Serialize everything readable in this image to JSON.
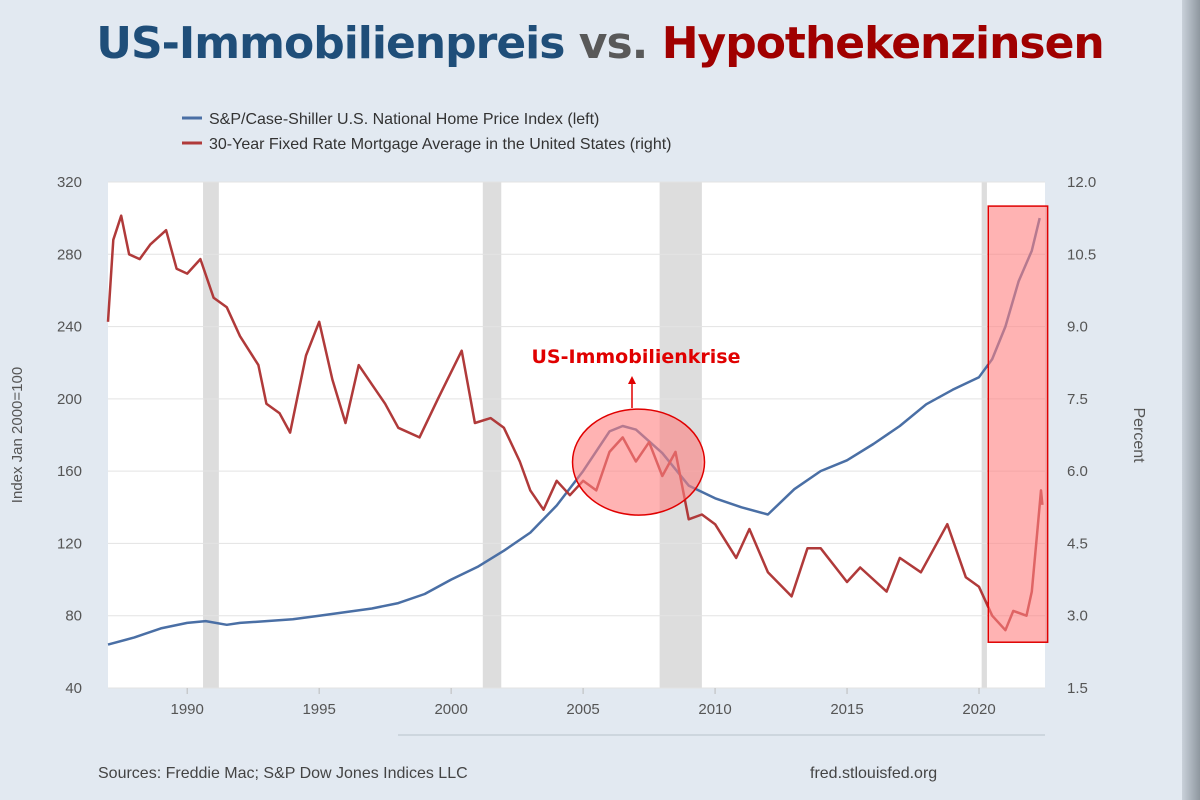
{
  "title": {
    "part1": "US-Immobilienpreis",
    "part2": "vs.",
    "part3": "Hypothekenzinsen"
  },
  "colors": {
    "hpi": "#4a6fa5",
    "mortgage": "#b03a3a",
    "title_blue": "#1f4e79",
    "title_red": "#a00000",
    "highlight": "#ff8080",
    "recession": "#dddddd"
  },
  "chart_data": {
    "type": "line",
    "xlim": [
      1987,
      2022.5
    ],
    "x_ticks": [
      "1990",
      "1995",
      "2000",
      "2005",
      "2010",
      "2015",
      "2020"
    ],
    "y_left": {
      "label": "Index Jan 2000=100",
      "range": [
        40,
        320
      ],
      "ticks": [
        "40",
        "80",
        "120",
        "160",
        "200",
        "240",
        "280",
        "320"
      ]
    },
    "y_right": {
      "label": "Percent",
      "range": [
        1.5,
        12.0
      ],
      "ticks": [
        "1.5",
        "3.0",
        "4.5",
        "6.0",
        "7.5",
        "9.0",
        "10.5",
        "12.0"
      ]
    },
    "grid": true,
    "legend_position": "top-left",
    "recessions": [
      [
        1990.6,
        1991.2
      ],
      [
        2001.2,
        2001.9
      ],
      [
        2007.9,
        2009.5
      ],
      [
        2020.1,
        2020.3
      ]
    ],
    "series": [
      {
        "name": "S&P/Case-Shiller U.S. National Home Price Index (left)",
        "axis": "left",
        "x": [
          1987,
          1988,
          1989,
          1990,
          1990.7,
          1991.5,
          1992,
          1993,
          1994,
          1995,
          1996,
          1997,
          1998,
          1999,
          2000,
          2001,
          2002,
          2003,
          2004,
          2005,
          2006,
          2006.5,
          2007,
          2008,
          2009,
          2010,
          2011,
          2012,
          2013,
          2014,
          2015,
          2016,
          2017,
          2018,
          2019,
          2020,
          2020.5,
          2021,
          2021.5,
          2022,
          2022.3
        ],
        "y": [
          64,
          68,
          73,
          76,
          77,
          75,
          76,
          77,
          78,
          80,
          82,
          84,
          87,
          92,
          100,
          107,
          116,
          126,
          141,
          160,
          182,
          185,
          183,
          170,
          152,
          145,
          140,
          136,
          150,
          160,
          166,
          175,
          185,
          197,
          205,
          212,
          222,
          240,
          265,
          282,
          300
        ]
      },
      {
        "name": "30-Year Fixed Rate Mortgage Average in the United States (right)",
        "axis": "right",
        "x": [
          1987,
          1987.2,
          1987.5,
          1987.8,
          1988.2,
          1988.6,
          1989.2,
          1989.6,
          1990,
          1990.5,
          1991,
          1991.5,
          1992,
          1992.7,
          1993,
          1993.5,
          1993.9,
          1994.5,
          1995,
          1995.5,
          1996,
          1996.5,
          1997,
          1997.5,
          1998,
          1998.8,
          1999.5,
          2000.4,
          2000.9,
          2001.5,
          2002,
          2002.6,
          2003,
          2003.5,
          2004,
          2004.5,
          2005,
          2005.5,
          2006,
          2006.5,
          2007,
          2007.5,
          2008,
          2008.5,
          2009,
          2009.5,
          2010,
          2010.8,
          2011.3,
          2012,
          2012.9,
          2013.5,
          2014,
          2015,
          2015.5,
          2016.5,
          2017,
          2017.8,
          2018.8,
          2019.5,
          2020,
          2020.5,
          2021,
          2021.3,
          2021.8,
          2022,
          2022.2,
          2022.35,
          2022.4
        ],
        "y": [
          9.1,
          10.8,
          11.3,
          10.5,
          10.4,
          10.7,
          11.0,
          10.2,
          10.1,
          10.4,
          9.6,
          9.4,
          8.8,
          8.2,
          7.4,
          7.2,
          6.8,
          8.4,
          9.1,
          7.9,
          7.0,
          8.2,
          7.8,
          7.4,
          6.9,
          6.7,
          7.5,
          8.5,
          7.0,
          7.1,
          6.9,
          6.2,
          5.6,
          5.2,
          5.8,
          5.5,
          5.8,
          5.6,
          6.4,
          6.7,
          6.2,
          6.6,
          5.9,
          6.4,
          5.0,
          5.1,
          4.9,
          4.2,
          4.8,
          3.9,
          3.4,
          4.4,
          4.4,
          3.7,
          4.0,
          3.5,
          4.2,
          3.9,
          4.9,
          3.8,
          3.6,
          3.0,
          2.7,
          3.1,
          3.0,
          3.5,
          4.7,
          5.6,
          5.3
        ]
      }
    ],
    "annotations": {
      "crisis_label": "US-Immobilienkrise"
    }
  },
  "footer": {
    "sources": "Sources: Freddie Mac; S&P Dow Jones Indices LLC",
    "site": "fred.stlouisfed.org"
  }
}
